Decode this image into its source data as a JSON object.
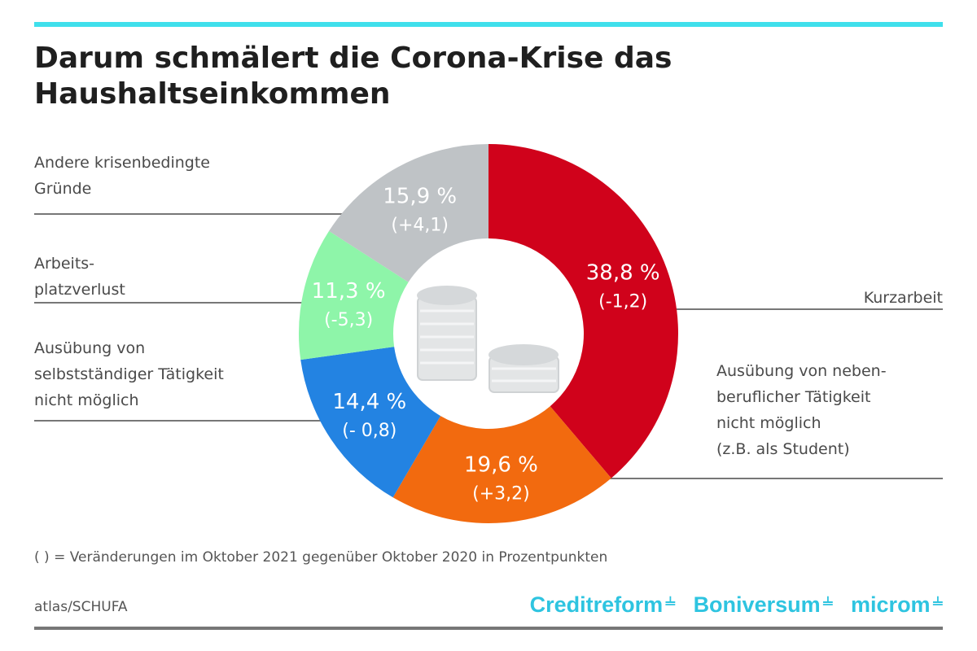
{
  "title": "Darum schmälert die Corona-Krise das Haushaltseinkommen",
  "footnote": "( ) = Veränderungen im Oktober 2021 gegenüber Oktober 2020 in Prozentpunkten",
  "source": "atlas/SCHUFA",
  "logos": [
    "Creditreform",
    "Boniversum",
    "microm"
  ],
  "colors": {
    "accent_bar": "#3fe0ec",
    "logo": "#2ec4e0"
  },
  "chart_data": {
    "type": "pie",
    "donut": true,
    "start_angle_deg": 0,
    "direction": "clockwise",
    "slices": [
      {
        "label": "Kurzarbeit",
        "value": 38.8,
        "value_text": "38,8 %",
        "change_text": "(-1,2)",
        "color": "#d0021b"
      },
      {
        "label": "Ausübung von nebenberuflicher Tätigkeit nicht möglich (z.B. als Student)",
        "value": 19.6,
        "value_text": "19,6 %",
        "change_text": "(+3,2)",
        "color": "#f26a0f"
      },
      {
        "label": "Ausübung von selbstständiger Tätigkeit nicht möglich",
        "value": 14.4,
        "value_text": "14,4 %",
        "change_text": "(- 0,8)",
        "color": "#2383e2"
      },
      {
        "label": "Arbeitsplatzverlust",
        "value": 11.3,
        "value_text": "11,3 %",
        "change_text": "(-5,3)",
        "color": "#8ef5a9"
      },
      {
        "label": "Andere krisenbedingte Gründe",
        "value": 15.9,
        "value_text": "15,9 %",
        "change_text": "(+4,1)",
        "color": "#bfc3c6"
      }
    ],
    "center_icon": "coin-stacks-icon"
  },
  "labels": {
    "kurzarbeit": "Kurzarbeit",
    "nebenberuflich": "Ausübung von neben-\nberuflicher Tätigkeit\nnicht möglich\n(z.B. als Student)",
    "selbststaendig": "Ausübung von\nselbstständiger Tätigkeit\nnicht möglich",
    "arbeitsplatz": "Arbeits-\nplatzverlust",
    "andere": "Andere krisenbedingte\nGründe"
  }
}
